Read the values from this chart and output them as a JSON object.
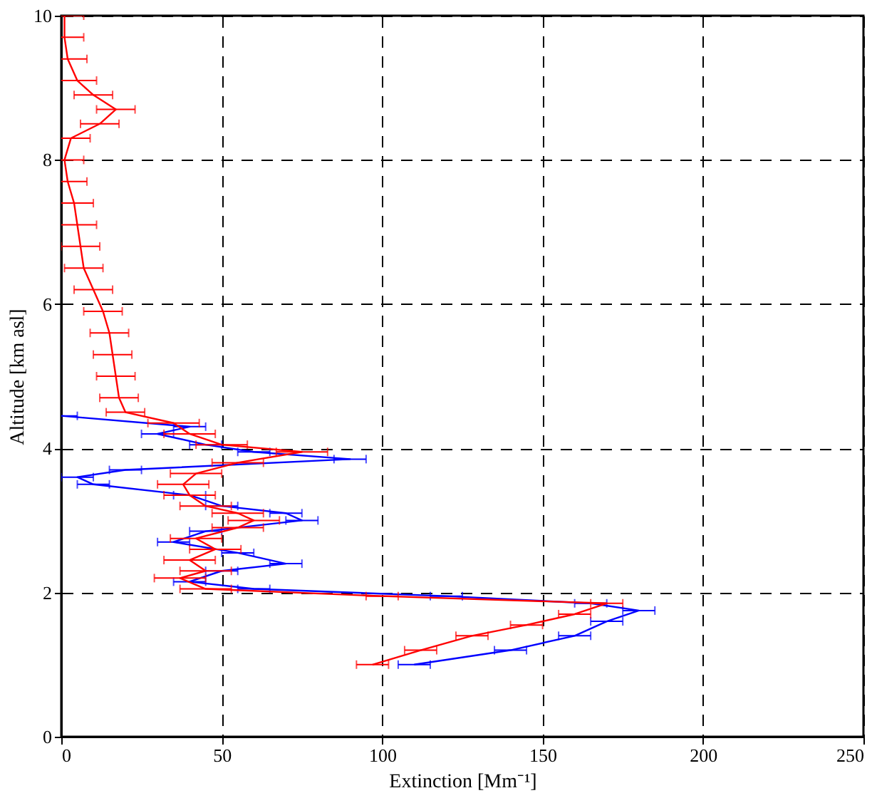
{
  "chart_data": {
    "type": "line",
    "xlabel": "Extinction [Mm⁻¹]",
    "ylabel": "Altitude [km asl]",
    "xlim": [
      0,
      250
    ],
    "xticks": [
      0,
      50,
      100,
      150,
      200,
      250
    ],
    "ylim": [
      0,
      10
    ],
    "yticks": [
      0,
      2,
      4,
      6,
      8,
      10
    ],
    "grid": true,
    "marker": "none",
    "line_style": "solid",
    "series": [
      {
        "color": "#0000ff",
        "x": [
          110,
          140,
          160,
          170,
          180,
          165,
          120,
          60,
          40,
          50,
          70,
          55,
          35,
          45,
          75,
          70,
          50,
          40,
          10,
          5,
          20,
          90,
          60,
          45,
          30,
          40,
          0
        ],
        "values": [
          1.0,
          1.2,
          1.4,
          1.6,
          1.75,
          1.85,
          1.95,
          2.05,
          2.15,
          2.3,
          2.4,
          2.55,
          2.7,
          2.85,
          3.0,
          3.1,
          3.2,
          3.35,
          3.5,
          3.6,
          3.7,
          3.85,
          3.95,
          4.05,
          4.2,
          4.3,
          4.45
        ],
        "xerrors": [
          5,
          5,
          5,
          5,
          5,
          5,
          5,
          5,
          5,
          5,
          5,
          5,
          5,
          5,
          5,
          5,
          5,
          5,
          5,
          5,
          5,
          5,
          5,
          5,
          5,
          5,
          5
        ]
      },
      {
        "color": "#ff0000",
        "x": [
          97,
          112,
          128,
          145,
          160,
          170,
          100,
          45,
          37,
          45,
          40,
          48,
          42,
          55,
          60,
          55,
          45,
          40,
          38,
          42,
          55,
          75,
          50,
          40,
          35,
          20,
          18,
          17,
          16,
          15,
          13,
          10,
          7,
          6,
          5,
          4,
          2,
          1,
          3,
          12,
          17,
          10,
          5,
          2,
          1,
          1
        ],
        "values": [
          1.0,
          1.2,
          1.4,
          1.55,
          1.7,
          1.85,
          1.95,
          2.05,
          2.2,
          2.3,
          2.45,
          2.6,
          2.75,
          2.9,
          3.0,
          3.1,
          3.2,
          3.35,
          3.5,
          3.65,
          3.8,
          3.95,
          4.05,
          4.2,
          4.35,
          4.5,
          4.7,
          5.0,
          5.3,
          5.6,
          5.9,
          6.2,
          6.5,
          6.8,
          7.1,
          7.4,
          7.7,
          8.0,
          8.3,
          8.5,
          8.7,
          8.9,
          9.1,
          9.4,
          9.7,
          10.0
        ],
        "xerrors": [
          5,
          5,
          5,
          5,
          5,
          5,
          5,
          8,
          8,
          8,
          8,
          8,
          8,
          8,
          8,
          8,
          8,
          8,
          8,
          8,
          8,
          8,
          8,
          8,
          8,
          6,
          6,
          6,
          6,
          6,
          6,
          6,
          6,
          6,
          6,
          6,
          6,
          6,
          6,
          6,
          6,
          6,
          6,
          6,
          6,
          6
        ]
      }
    ]
  }
}
